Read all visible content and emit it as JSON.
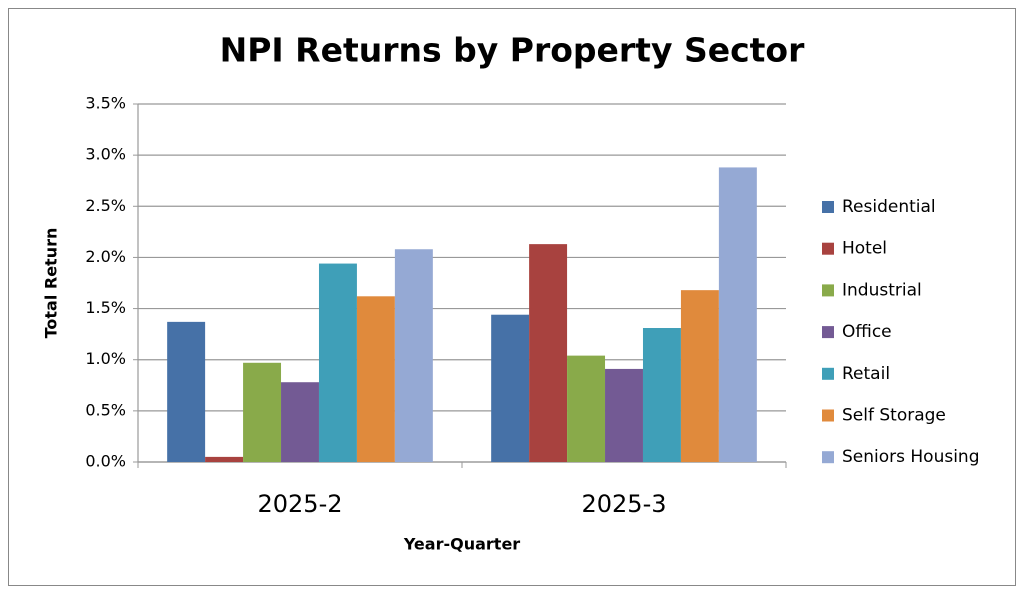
{
  "chart_data": {
    "type": "bar",
    "title": "NPI Returns by Property Sector",
    "xlabel": "Year-Quarter",
    "ylabel": "Total Return",
    "categories": [
      "2025-2",
      "2025-3"
    ],
    "series": [
      {
        "name": "Residential",
        "color": "#4671a7",
        "values": [
          1.37,
          1.44
        ]
      },
      {
        "name": "Hotel",
        "color": "#a8423f",
        "values": [
          0.05,
          2.13
        ]
      },
      {
        "name": "Industrial",
        "color": "#89aa4a",
        "values": [
          0.97,
          1.04
        ]
      },
      {
        "name": "Office",
        "color": "#735a94",
        "values": [
          0.78,
          0.91
        ]
      },
      {
        "name": "Retail",
        "color": "#3f9fb8",
        "values": [
          1.94,
          1.31
        ]
      },
      {
        "name": "Self Storage",
        "color": "#e08a3c",
        "values": [
          1.62,
          1.68
        ]
      },
      {
        "name": "Seniors Housing",
        "color": "#95a9d4",
        "values": [
          2.08,
          2.88
        ]
      }
    ],
    "ylim": [
      0,
      3.5
    ],
    "yticks": [
      {
        "value": 0,
        "label": "0.0%"
      },
      {
        "value": 0.5,
        "label": "0.5%"
      },
      {
        "value": 1,
        "label": "1.0%"
      },
      {
        "value": 1.5,
        "label": "1.5%"
      },
      {
        "value": 2,
        "label": "2.0%"
      },
      {
        "value": 2.5,
        "label": "2.5%"
      },
      {
        "value": 3,
        "label": "3.0%"
      },
      {
        "value": 3.5,
        "label": "3.5%"
      }
    ],
    "grid": true,
    "legend": "right"
  }
}
